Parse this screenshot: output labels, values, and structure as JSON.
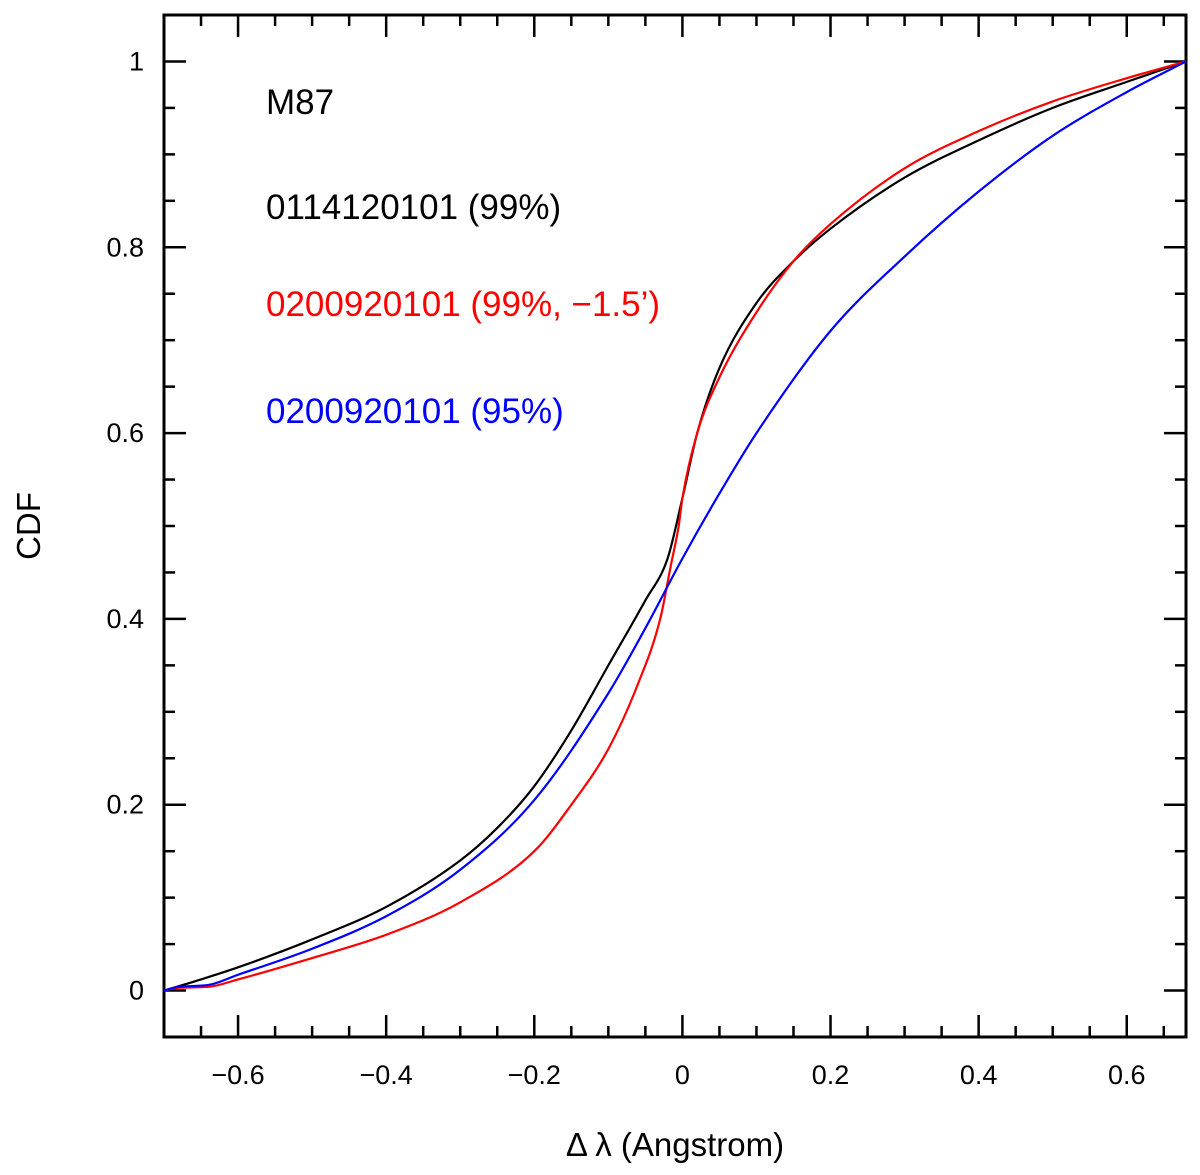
{
  "chart_data": {
    "type": "line",
    "title": "",
    "xlabel": "Δ λ (Angstrom)",
    "ylabel": "CDF",
    "xlim": [
      -0.7,
      0.68
    ],
    "ylim": [
      -0.05,
      1.05
    ],
    "grid": false,
    "x_major_ticks": [
      -0.6,
      -0.4,
      -0.2,
      0,
      0.2,
      0.4,
      0.6
    ],
    "x_tick_labels": [
      "−0.6",
      "−0.4",
      "−0.2",
      "0",
      "0.2",
      "0.4",
      "0.6"
    ],
    "y_major_ticks": [
      0,
      0.2,
      0.4,
      0.6,
      0.8,
      1
    ],
    "y_tick_labels": [
      "0",
      "0.2",
      "0.4",
      "0.6",
      "0.8",
      "1"
    ],
    "annotations": [
      "M87",
      "0114120101 (99%)",
      "0200920101 (99%, −1.5’)",
      "0200920101 (95%)"
    ],
    "series": [
      {
        "name": "0114120101 (99%)",
        "color": "#000000",
        "x": [
          -0.7,
          -0.65,
          -0.6,
          -0.5,
          -0.4,
          -0.3,
          -0.25,
          -0.2,
          -0.15,
          -0.1,
          -0.05,
          -0.02,
          0,
          0.02,
          0.05,
          0.1,
          0.15,
          0.2,
          0.3,
          0.4,
          0.5,
          0.6,
          0.68
        ],
        "y": [
          0.0,
          0.012,
          0.025,
          0.055,
          0.09,
          0.14,
          0.175,
          0.22,
          0.28,
          0.35,
          0.42,
          0.465,
          0.53,
          0.6,
          0.67,
          0.74,
          0.785,
          0.82,
          0.875,
          0.915,
          0.95,
          0.978,
          1.0
        ]
      },
      {
        "name": "0200920101 (99%, −1.5’)",
        "color": "#ff0000",
        "x": [
          -0.7,
          -0.68,
          -0.64,
          -0.6,
          -0.5,
          -0.4,
          -0.3,
          -0.2,
          -0.15,
          -0.1,
          -0.06,
          -0.03,
          -0.015,
          -0.005,
          0,
          0.02,
          0.05,
          0.1,
          0.15,
          0.2,
          0.3,
          0.4,
          0.5,
          0.6,
          0.68
        ],
        "y": [
          0.0,
          0.003,
          0.004,
          0.012,
          0.035,
          0.06,
          0.095,
          0.15,
          0.2,
          0.26,
          0.33,
          0.4,
          0.46,
          0.5,
          0.53,
          0.6,
          0.66,
          0.73,
          0.785,
          0.825,
          0.885,
          0.925,
          0.957,
          0.982,
          1.0
        ]
      },
      {
        "name": "0200920101 (95%)",
        "color": "#0000ff",
        "x": [
          -0.7,
          -0.68,
          -0.64,
          -0.6,
          -0.5,
          -0.4,
          -0.3,
          -0.2,
          -0.1,
          -0.05,
          0,
          0.05,
          0.1,
          0.2,
          0.3,
          0.4,
          0.5,
          0.6,
          0.68
        ],
        "y": [
          0.0,
          0.004,
          0.006,
          0.017,
          0.045,
          0.08,
          0.13,
          0.205,
          0.32,
          0.39,
          0.465,
          0.535,
          0.6,
          0.71,
          0.79,
          0.86,
          0.92,
          0.967,
          1.0
        ]
      }
    ]
  }
}
